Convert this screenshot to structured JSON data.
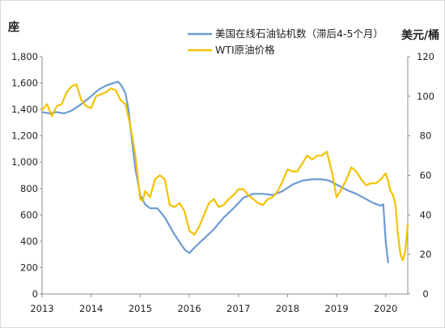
{
  "chart_data": {
    "type": "line",
    "left_axis_unit": "座",
    "right_axis_unit": "美元/桶",
    "x_ticks": [
      "2013",
      "2014",
      "2015",
      "2016",
      "2017",
      "2018",
      "2019",
      "2020"
    ],
    "y_left_ticks": [
      "0",
      "200",
      "400",
      "600",
      "800",
      "1,000",
      "1,200",
      "1,400",
      "1,600",
      "1,800"
    ],
    "y_right_ticks": [
      "0",
      "20",
      "40",
      "60",
      "80",
      "100",
      "120"
    ],
    "x_range": [
      2013.0,
      2020.45
    ],
    "y_left_range": [
      0,
      1800
    ],
    "y_right_range": [
      0,
      120
    ],
    "grid": false,
    "legend_position": "top-right",
    "series": [
      {
        "name": "美国在线石油钻机数（滞后4-5个月）",
        "axis": "left",
        "color": "#6c9bd2",
        "x": [
          2013.0,
          2013.15,
          2013.3,
          2013.45,
          2013.6,
          2013.8,
          2014.0,
          2014.15,
          2014.3,
          2014.45,
          2014.55,
          2014.62,
          2014.7,
          2014.76,
          2014.82,
          2014.9,
          2015.0,
          2015.1,
          2015.2,
          2015.35,
          2015.5,
          2015.7,
          2015.9,
          2016.0,
          2016.1,
          2016.3,
          2016.5,
          2016.7,
          2016.9,
          2017.1,
          2017.3,
          2017.5,
          2017.7,
          2017.9,
          2018.1,
          2018.3,
          2018.5,
          2018.7,
          2018.85,
          2019.0,
          2019.2,
          2019.4,
          2019.6,
          2019.75,
          2019.9,
          2019.95,
          2020.0,
          2020.05
        ],
        "y": [
          1380,
          1370,
          1380,
          1370,
          1390,
          1440,
          1500,
          1550,
          1580,
          1600,
          1610,
          1580,
          1520,
          1400,
          1200,
          950,
          750,
          680,
          650,
          650,
          580,
          450,
          340,
          310,
          350,
          420,
          490,
          580,
          650,
          730,
          760,
          760,
          750,
          780,
          830,
          860,
          870,
          870,
          860,
          830,
          790,
          760,
          720,
          690,
          670,
          680,
          400,
          240
        ]
      },
      {
        "name": "WTI原油价格",
        "axis": "right",
        "color": "#f2c200",
        "x": [
          2013.0,
          2013.1,
          2013.2,
          2013.3,
          2013.4,
          2013.5,
          2013.6,
          2013.7,
          2013.8,
          2013.9,
          2014.0,
          2014.1,
          2014.2,
          2014.3,
          2014.4,
          2014.5,
          2014.6,
          2014.7,
          2014.8,
          2014.9,
          2015.0,
          2015.05,
          2015.1,
          2015.2,
          2015.3,
          2015.4,
          2015.5,
          2015.6,
          2015.7,
          2015.8,
          2015.9,
          2016.0,
          2016.1,
          2016.2,
          2016.3,
          2016.4,
          2016.5,
          2016.6,
          2016.7,
          2016.8,
          2016.9,
          2017.0,
          2017.1,
          2017.2,
          2017.3,
          2017.4,
          2017.5,
          2017.6,
          2017.7,
          2017.8,
          2017.9,
          2018.0,
          2018.1,
          2018.2,
          2018.3,
          2018.4,
          2018.5,
          2018.6,
          2018.7,
          2018.8,
          2018.9,
          2019.0,
          2019.1,
          2019.2,
          2019.3,
          2019.4,
          2019.5,
          2019.6,
          2019.7,
          2019.8,
          2019.9,
          2020.0,
          2020.05,
          2020.1,
          2020.15,
          2020.2,
          2020.25,
          2020.3,
          2020.35,
          2020.4,
          2020.45
        ],
        "y": [
          93,
          96,
          90,
          95,
          96,
          102,
          105,
          106,
          98,
          95,
          94,
          100,
          101,
          102,
          104,
          103,
          98,
          96,
          85,
          70,
          48,
          47,
          52,
          49,
          58,
          60,
          58,
          45,
          44,
          46,
          42,
          32,
          30,
          34,
          40,
          46,
          48,
          44,
          45,
          48,
          50,
          53,
          53,
          50,
          48,
          46,
          45,
          48,
          49,
          52,
          57,
          63,
          62,
          62,
          66,
          70,
          68,
          70,
          70,
          72,
          62,
          49,
          53,
          58,
          64,
          62,
          58,
          55,
          56,
          56,
          58,
          61,
          57,
          52,
          50,
          45,
          30,
          20,
          17,
          22,
          35
        ]
      }
    ]
  }
}
